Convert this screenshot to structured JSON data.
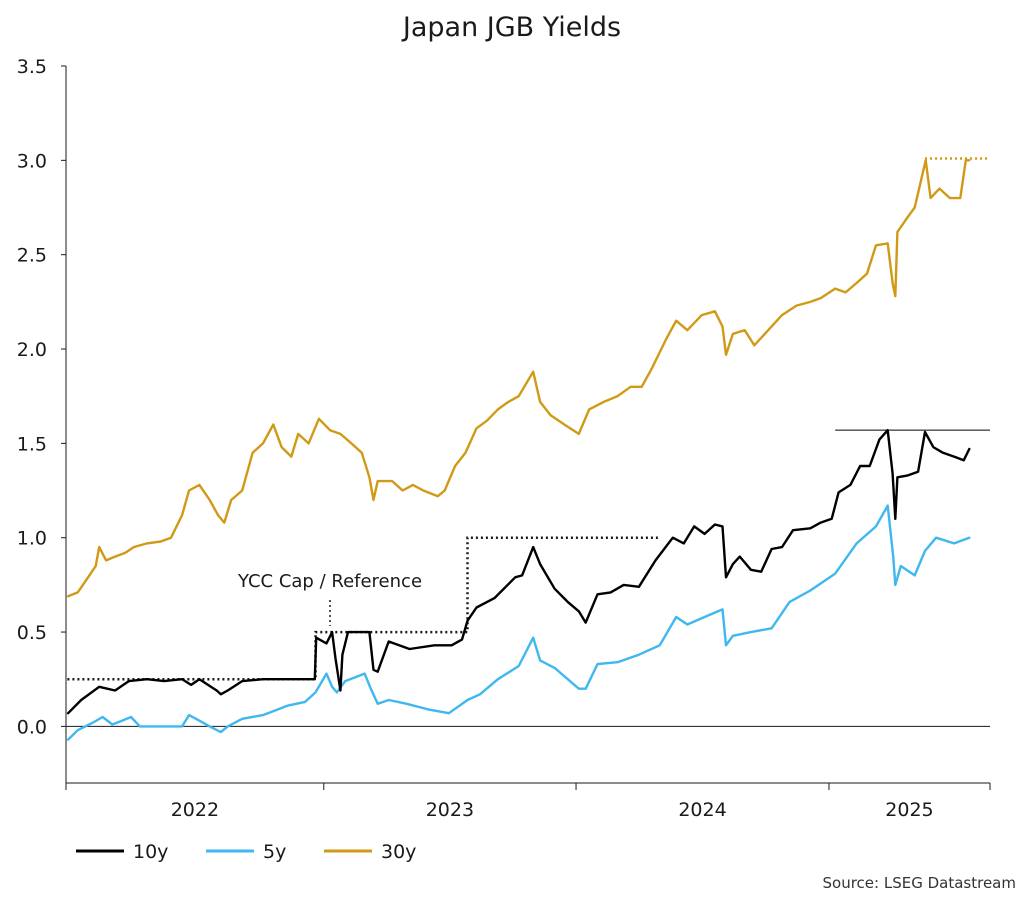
{
  "chart_data": {
    "type": "line",
    "title": "Japan JGB Yields",
    "xlabel": "",
    "ylabel": "",
    "ylim": [
      -0.3,
      3.5
    ],
    "yticks": [
      "0.0",
      "0.5",
      "1.0",
      "1.5",
      "2.0",
      "2.5",
      "3.0",
      "3.5"
    ],
    "xlim": [
      "2021-12-24",
      "2025-08-22"
    ],
    "xticks": [
      "2022",
      "2023",
      "2024",
      "2025"
    ],
    "grid": false,
    "legend_position": "bottom-left",
    "annotations": {
      "ycc_label": "YCC Cap / Reference",
      "source": "Source: LSEG Datastream"
    },
    "ycc_reference": [
      {
        "from": "2021-12-26",
        "to": "2022-12-20",
        "value": 0.25
      },
      {
        "from": "2022-12-20",
        "to": "2023-07-28",
        "value": 0.5
      },
      {
        "from": "2023-07-28",
        "to": "2024-04-30",
        "value": 1.0
      }
    ],
    "reference_lines": [
      {
        "series": "10y",
        "from": "2025-01-10",
        "to": "2025-08-22",
        "value": 1.57
      },
      {
        "series": "30y",
        "from": "2025-05-20",
        "to": "2025-08-22",
        "value": 3.01
      }
    ],
    "series": [
      {
        "name": "10y",
        "color": "#000000",
        "points": [
          [
            "2021-12-27",
            0.07
          ],
          [
            "2022-01-15",
            0.14
          ],
          [
            "2022-02-10",
            0.21
          ],
          [
            "2022-03-05",
            0.19
          ],
          [
            "2022-03-25",
            0.24
          ],
          [
            "2022-04-20",
            0.25
          ],
          [
            "2022-05-15",
            0.24
          ],
          [
            "2022-06-10",
            0.25
          ],
          [
            "2022-06-23",
            0.22
          ],
          [
            "2022-07-05",
            0.25
          ],
          [
            "2022-07-30",
            0.19
          ],
          [
            "2022-08-05",
            0.17
          ],
          [
            "2022-08-15",
            0.19
          ],
          [
            "2022-09-05",
            0.24
          ],
          [
            "2022-10-05",
            0.25
          ],
          [
            "2022-11-15",
            0.25
          ],
          [
            "2022-12-19",
            0.25
          ],
          [
            "2022-12-21",
            0.47
          ],
          [
            "2023-01-05",
            0.44
          ],
          [
            "2023-01-13",
            0.5
          ],
          [
            "2023-01-18",
            0.36
          ],
          [
            "2023-01-25",
            0.19
          ],
          [
            "2023-01-28",
            0.38
          ],
          [
            "2023-02-05",
            0.5
          ],
          [
            "2023-03-08",
            0.5
          ],
          [
            "2023-03-14",
            0.3
          ],
          [
            "2023-03-20",
            0.29
          ],
          [
            "2023-04-05",
            0.45
          ],
          [
            "2023-05-05",
            0.41
          ],
          [
            "2023-06-10",
            0.43
          ],
          [
            "2023-07-05",
            0.43
          ],
          [
            "2023-07-20",
            0.46
          ],
          [
            "2023-07-28",
            0.56
          ],
          [
            "2023-08-10",
            0.63
          ],
          [
            "2023-09-05",
            0.68
          ],
          [
            "2023-10-05",
            0.79
          ],
          [
            "2023-10-15",
            0.8
          ],
          [
            "2023-10-31",
            0.95
          ],
          [
            "2023-11-10",
            0.86
          ],
          [
            "2023-12-01",
            0.73
          ],
          [
            "2023-12-20",
            0.66
          ],
          [
            "2024-01-05",
            0.61
          ],
          [
            "2024-01-15",
            0.55
          ],
          [
            "2024-02-01",
            0.7
          ],
          [
            "2024-02-20",
            0.71
          ],
          [
            "2024-03-10",
            0.75
          ],
          [
            "2024-04-01",
            0.74
          ],
          [
            "2024-04-25",
            0.88
          ],
          [
            "2024-05-20",
            1.0
          ],
          [
            "2024-06-05",
            0.97
          ],
          [
            "2024-06-20",
            1.06
          ],
          [
            "2024-07-05",
            1.02
          ],
          [
            "2024-07-20",
            1.07
          ],
          [
            "2024-07-31",
            1.06
          ],
          [
            "2024-08-05",
            0.79
          ],
          [
            "2024-08-15",
            0.86
          ],
          [
            "2024-08-25",
            0.9
          ],
          [
            "2024-09-10",
            0.83
          ],
          [
            "2024-09-25",
            0.82
          ],
          [
            "2024-10-10",
            0.94
          ],
          [
            "2024-10-25",
            0.95
          ],
          [
            "2024-11-10",
            1.04
          ],
          [
            "2024-12-05",
            1.05
          ],
          [
            "2024-12-20",
            1.08
          ],
          [
            "2025-01-05",
            1.1
          ],
          [
            "2025-01-15",
            1.24
          ],
          [
            "2025-02-01",
            1.28
          ],
          [
            "2025-02-15",
            1.38
          ],
          [
            "2025-03-01",
            1.38
          ],
          [
            "2025-03-15",
            1.52
          ],
          [
            "2025-03-27",
            1.57
          ],
          [
            "2025-04-03",
            1.34
          ],
          [
            "2025-04-07",
            1.1
          ],
          [
            "2025-04-10",
            1.32
          ],
          [
            "2025-04-25",
            1.33
          ],
          [
            "2025-05-10",
            1.35
          ],
          [
            "2025-05-20",
            1.56
          ],
          [
            "2025-06-01",
            1.48
          ],
          [
            "2025-06-15",
            1.45
          ],
          [
            "2025-07-01",
            1.43
          ],
          [
            "2025-07-15",
            1.41
          ],
          [
            "2025-07-23",
            1.47
          ]
        ]
      },
      {
        "name": "5y",
        "color": "#3fb7ef",
        "points": [
          [
            "2021-12-27",
            -0.07
          ],
          [
            "2022-01-10",
            -0.02
          ],
          [
            "2022-02-01",
            0.02
          ],
          [
            "2022-02-15",
            0.05
          ],
          [
            "2022-03-01",
            0.01
          ],
          [
            "2022-03-15",
            0.03
          ],
          [
            "2022-03-28",
            0.05
          ],
          [
            "2022-04-10",
            0.0
          ],
          [
            "2022-05-10",
            0.0
          ],
          [
            "2022-06-10",
            0.0
          ],
          [
            "2022-06-20",
            0.06
          ],
          [
            "2022-07-05",
            0.03
          ],
          [
            "2022-07-20",
            0.0
          ],
          [
            "2022-08-05",
            -0.03
          ],
          [
            "2022-08-15",
            0.0
          ],
          [
            "2022-09-05",
            0.04
          ],
          [
            "2022-10-05",
            0.06
          ],
          [
            "2022-11-10",
            0.11
          ],
          [
            "2022-12-05",
            0.13
          ],
          [
            "2022-12-20",
            0.18
          ],
          [
            "2023-01-05",
            0.28
          ],
          [
            "2023-01-13",
            0.21
          ],
          [
            "2023-01-20",
            0.18
          ],
          [
            "2023-02-01",
            0.24
          ],
          [
            "2023-03-01",
            0.28
          ],
          [
            "2023-03-10",
            0.2
          ],
          [
            "2023-03-20",
            0.12
          ],
          [
            "2023-04-05",
            0.14
          ],
          [
            "2023-05-01",
            0.12
          ],
          [
            "2023-06-01",
            0.09
          ],
          [
            "2023-07-01",
            0.07
          ],
          [
            "2023-07-28",
            0.14
          ],
          [
            "2023-08-15",
            0.17
          ],
          [
            "2023-09-10",
            0.25
          ],
          [
            "2023-10-10",
            0.32
          ],
          [
            "2023-10-31",
            0.47
          ],
          [
            "2023-11-10",
            0.35
          ],
          [
            "2023-12-01",
            0.31
          ],
          [
            "2024-01-05",
            0.2
          ],
          [
            "2024-01-15",
            0.2
          ],
          [
            "2024-02-01",
            0.33
          ],
          [
            "2024-03-01",
            0.34
          ],
          [
            "2024-04-01",
            0.38
          ],
          [
            "2024-05-01",
            0.43
          ],
          [
            "2024-05-25",
            0.58
          ],
          [
            "2024-06-10",
            0.54
          ],
          [
            "2024-07-05",
            0.58
          ],
          [
            "2024-07-31",
            0.62
          ],
          [
            "2024-08-05",
            0.43
          ],
          [
            "2024-08-15",
            0.48
          ],
          [
            "2024-09-10",
            0.5
          ],
          [
            "2024-10-10",
            0.52
          ],
          [
            "2024-11-05",
            0.66
          ],
          [
            "2024-12-05",
            0.72
          ],
          [
            "2025-01-10",
            0.81
          ],
          [
            "2025-02-10",
            0.97
          ],
          [
            "2025-03-10",
            1.06
          ],
          [
            "2025-03-27",
            1.17
          ],
          [
            "2025-04-04",
            0.9
          ],
          [
            "2025-04-07",
            0.75
          ],
          [
            "2025-04-15",
            0.85
          ],
          [
            "2025-05-05",
            0.8
          ],
          [
            "2025-05-20",
            0.93
          ],
          [
            "2025-06-05",
            1.0
          ],
          [
            "2025-07-01",
            0.97
          ],
          [
            "2025-07-23",
            1.0
          ]
        ]
      },
      {
        "name": "30y",
        "color": "#d09a16",
        "points": [
          [
            "2021-12-27",
            0.69
          ],
          [
            "2022-01-10",
            0.71
          ],
          [
            "2022-01-25",
            0.79
          ],
          [
            "2022-02-05",
            0.85
          ],
          [
            "2022-02-10",
            0.95
          ],
          [
            "2022-02-20",
            0.88
          ],
          [
            "2022-03-05",
            0.9
          ],
          [
            "2022-03-20",
            0.92
          ],
          [
            "2022-04-01",
            0.95
          ],
          [
            "2022-04-20",
            0.97
          ],
          [
            "2022-05-10",
            0.98
          ],
          [
            "2022-05-25",
            1.0
          ],
          [
            "2022-06-10",
            1.12
          ],
          [
            "2022-06-20",
            1.25
          ],
          [
            "2022-07-05",
            1.28
          ],
          [
            "2022-07-20",
            1.2
          ],
          [
            "2022-08-01",
            1.12
          ],
          [
            "2022-08-10",
            1.08
          ],
          [
            "2022-08-20",
            1.2
          ],
          [
            "2022-09-05",
            1.25
          ],
          [
            "2022-09-20",
            1.45
          ],
          [
            "2022-10-05",
            1.5
          ],
          [
            "2022-10-20",
            1.6
          ],
          [
            "2022-11-01",
            1.48
          ],
          [
            "2022-11-15",
            1.43
          ],
          [
            "2022-11-25",
            1.55
          ],
          [
            "2022-12-10",
            1.5
          ],
          [
            "2022-12-25",
            1.63
          ],
          [
            "2023-01-10",
            1.57
          ],
          [
            "2023-01-25",
            1.55
          ],
          [
            "2023-02-10",
            1.5
          ],
          [
            "2023-02-25",
            1.45
          ],
          [
            "2023-03-08",
            1.32
          ],
          [
            "2023-03-14",
            1.2
          ],
          [
            "2023-03-20",
            1.3
          ],
          [
            "2023-04-10",
            1.3
          ],
          [
            "2023-04-25",
            1.25
          ],
          [
            "2023-05-10",
            1.28
          ],
          [
            "2023-05-25",
            1.25
          ],
          [
            "2023-06-15",
            1.22
          ],
          [
            "2023-06-25",
            1.25
          ],
          [
            "2023-07-10",
            1.38
          ],
          [
            "2023-07-25",
            1.45
          ],
          [
            "2023-08-10",
            1.58
          ],
          [
            "2023-08-25",
            1.62
          ],
          [
            "2023-09-10",
            1.68
          ],
          [
            "2023-09-25",
            1.72
          ],
          [
            "2023-10-10",
            1.75
          ],
          [
            "2023-10-31",
            1.88
          ],
          [
            "2023-11-10",
            1.72
          ],
          [
            "2023-11-25",
            1.65
          ],
          [
            "2023-12-15",
            1.6
          ],
          [
            "2024-01-05",
            1.55
          ],
          [
            "2024-01-20",
            1.68
          ],
          [
            "2024-02-10",
            1.72
          ],
          [
            "2024-03-01",
            1.75
          ],
          [
            "2024-03-20",
            1.8
          ],
          [
            "2024-04-05",
            1.8
          ],
          [
            "2024-04-20",
            1.9
          ],
          [
            "2024-05-10",
            2.05
          ],
          [
            "2024-05-25",
            2.15
          ],
          [
            "2024-06-10",
            2.1
          ],
          [
            "2024-07-01",
            2.18
          ],
          [
            "2024-07-20",
            2.2
          ],
          [
            "2024-07-31",
            2.12
          ],
          [
            "2024-08-05",
            1.97
          ],
          [
            "2024-08-15",
            2.08
          ],
          [
            "2024-09-01",
            2.1
          ],
          [
            "2024-09-15",
            2.02
          ],
          [
            "2024-10-05",
            2.1
          ],
          [
            "2024-10-25",
            2.18
          ],
          [
            "2024-11-15",
            2.23
          ],
          [
            "2024-12-05",
            2.25
          ],
          [
            "2024-12-20",
            2.27
          ],
          [
            "2025-01-10",
            2.32
          ],
          [
            "2025-01-25",
            2.3
          ],
          [
            "2025-02-10",
            2.35
          ],
          [
            "2025-02-25",
            2.4
          ],
          [
            "2025-03-10",
            2.55
          ],
          [
            "2025-03-27",
            2.56
          ],
          [
            "2025-04-03",
            2.35
          ],
          [
            "2025-04-07",
            2.28
          ],
          [
            "2025-04-10",
            2.62
          ],
          [
            "2025-04-25",
            2.7
          ],
          [
            "2025-05-05",
            2.75
          ],
          [
            "2025-05-21",
            3.0
          ],
          [
            "2025-05-28",
            2.8
          ],
          [
            "2025-06-10",
            2.85
          ],
          [
            "2025-06-25",
            2.8
          ],
          [
            "2025-07-10",
            2.8
          ],
          [
            "2025-07-18",
            3.0
          ],
          [
            "2025-07-23",
            3.0
          ]
        ]
      }
    ]
  }
}
